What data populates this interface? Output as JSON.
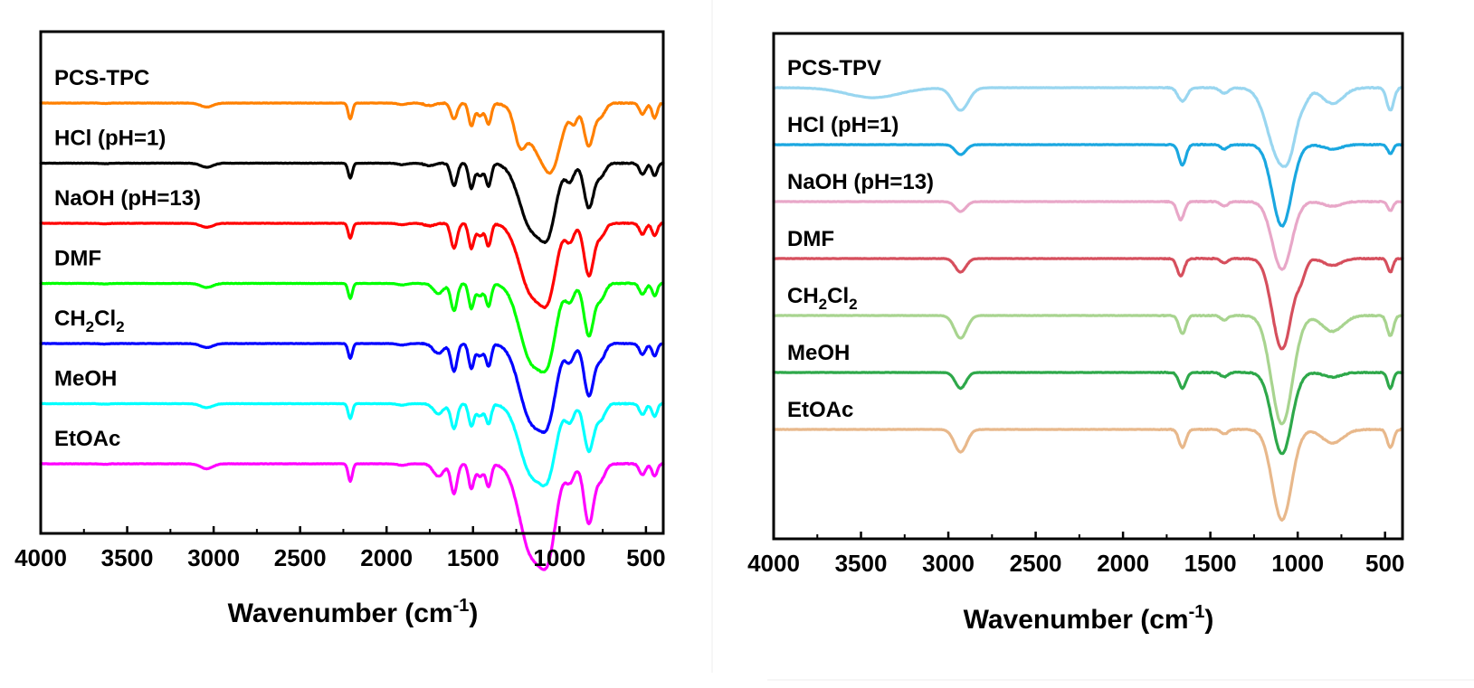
{
  "chart_data": [
    {
      "type": "line",
      "title": "",
      "xlabel": "Wavenumber (cm",
      "xlabel_sup": "-1",
      "xlabel_close": ")",
      "ylabel": "",
      "xlim": [
        4000,
        400
      ],
      "x_ticks": [
        "4000",
        "3500",
        "3000",
        "2500",
        "2000",
        "1500",
        "1000",
        "500"
      ],
      "x_tick_values": [
        4000,
        3500,
        3000,
        2500,
        2000,
        1500,
        1000,
        500
      ],
      "grid": false,
      "series": [
        {
          "name": "PCS-TPC",
          "color": "#ff8000",
          "baseline": 0,
          "bands": [
            [
              3630,
              25,
              0.01
            ],
            [
              3040,
              35,
              0.08
            ],
            [
              2210,
              12,
              0.32
            ],
            [
              1910,
              25,
              0.03
            ],
            [
              1750,
              30,
              0.05
            ],
            [
              1610,
              18,
              0.32
            ],
            [
              1510,
              15,
              0.45
            ],
            [
              1460,
              20,
              0.25
            ],
            [
              1410,
              15,
              0.42
            ],
            [
              1230,
              30,
              0.55
            ],
            [
              1100,
              90,
              1.0
            ],
            [
              1040,
              45,
              0.55
            ],
            [
              915,
              20,
              0.3
            ],
            [
              830,
              28,
              0.85
            ],
            [
              760,
              25,
              0.25
            ],
            [
              520,
              18,
              0.22
            ],
            [
              450,
              15,
              0.3
            ]
          ]
        },
        {
          "name": "HCl (pH=1)",
          "name_parts": [
            "HCl (pH=1)"
          ],
          "color": "#000000",
          "baseline": 0,
          "bands": [
            [
              3630,
              25,
              0.01
            ],
            [
              3040,
              35,
              0.08
            ],
            [
              2210,
              12,
              0.3
            ],
            [
              1910,
              25,
              0.03
            ],
            [
              1750,
              30,
              0.05
            ],
            [
              1610,
              18,
              0.45
            ],
            [
              1510,
              15,
              0.5
            ],
            [
              1460,
              20,
              0.25
            ],
            [
              1410,
              15,
              0.45
            ],
            [
              1160,
              70,
              1.3
            ],
            [
              1060,
              45,
              1.0
            ],
            [
              940,
              25,
              0.35
            ],
            [
              830,
              28,
              0.9
            ],
            [
              760,
              25,
              0.25
            ],
            [
              520,
              18,
              0.22
            ],
            [
              450,
              15,
              0.25
            ]
          ]
        },
        {
          "name": "NaOH (pH=13)",
          "color": "#ff0000",
          "baseline": 0,
          "bands": [
            [
              3630,
              25,
              0.01
            ],
            [
              3040,
              35,
              0.08
            ],
            [
              2210,
              12,
              0.3
            ],
            [
              1910,
              25,
              0.03
            ],
            [
              1750,
              30,
              0.05
            ],
            [
              1610,
              18,
              0.5
            ],
            [
              1510,
              15,
              0.5
            ],
            [
              1460,
              20,
              0.25
            ],
            [
              1410,
              15,
              0.45
            ],
            [
              1160,
              70,
              1.4
            ],
            [
              1060,
              45,
              1.05
            ],
            [
              940,
              25,
              0.35
            ],
            [
              830,
              28,
              1.05
            ],
            [
              760,
              25,
              0.25
            ],
            [
              520,
              18,
              0.22
            ],
            [
              450,
              15,
              0.25
            ]
          ]
        },
        {
          "name": "DMF",
          "color": "#00ff00",
          "baseline": 0,
          "bands": [
            [
              3630,
              25,
              0.01
            ],
            [
              3040,
              35,
              0.08
            ],
            [
              2210,
              12,
              0.3
            ],
            [
              1910,
              25,
              0.03
            ],
            [
              1700,
              30,
              0.2
            ],
            [
              1610,
              18,
              0.55
            ],
            [
              1510,
              15,
              0.5
            ],
            [
              1460,
              20,
              0.25
            ],
            [
              1410,
              15,
              0.45
            ],
            [
              1160,
              70,
              1.55
            ],
            [
              1060,
              45,
              1.05
            ],
            [
              940,
              25,
              0.35
            ],
            [
              830,
              28,
              1.05
            ],
            [
              760,
              25,
              0.3
            ],
            [
              520,
              18,
              0.22
            ],
            [
              450,
              15,
              0.25
            ]
          ]
        },
        {
          "name": "CH2Cl2",
          "name_parts": [
            "CH",
            "2",
            "Cl",
            "2"
          ],
          "color": "#0000ff",
          "baseline": 0,
          "bands": [
            [
              3630,
              25,
              0.01
            ],
            [
              3040,
              35,
              0.08
            ],
            [
              2210,
              12,
              0.3
            ],
            [
              1910,
              25,
              0.03
            ],
            [
              1700,
              30,
              0.2
            ],
            [
              1610,
              18,
              0.55
            ],
            [
              1510,
              15,
              0.5
            ],
            [
              1460,
              20,
              0.25
            ],
            [
              1410,
              15,
              0.45
            ],
            [
              1160,
              70,
              1.55
            ],
            [
              1060,
              45,
              1.05
            ],
            [
              940,
              25,
              0.35
            ],
            [
              830,
              28,
              1.05
            ],
            [
              760,
              25,
              0.3
            ],
            [
              520,
              18,
              0.22
            ],
            [
              450,
              15,
              0.25
            ]
          ]
        },
        {
          "name": "MeOH",
          "color": "#00ffff",
          "baseline": 0,
          "bands": [
            [
              3630,
              25,
              0.01
            ],
            [
              3040,
              35,
              0.08
            ],
            [
              2210,
              12,
              0.3
            ],
            [
              1910,
              25,
              0.03
            ],
            [
              1700,
              30,
              0.2
            ],
            [
              1610,
              18,
              0.5
            ],
            [
              1510,
              15,
              0.45
            ],
            [
              1460,
              20,
              0.25
            ],
            [
              1410,
              15,
              0.4
            ],
            [
              1160,
              70,
              1.4
            ],
            [
              1060,
              45,
              1.0
            ],
            [
              940,
              25,
              0.35
            ],
            [
              830,
              28,
              0.95
            ],
            [
              760,
              25,
              0.3
            ],
            [
              520,
              18,
              0.22
            ],
            [
              450,
              15,
              0.25
            ]
          ]
        },
        {
          "name": "EtOAc",
          "color": "#ff00ff",
          "baseline": 0,
          "bands": [
            [
              3630,
              25,
              0.01
            ],
            [
              3040,
              35,
              0.1
            ],
            [
              2210,
              12,
              0.35
            ],
            [
              1910,
              25,
              0.03
            ],
            [
              1700,
              30,
              0.25
            ],
            [
              1610,
              18,
              0.6
            ],
            [
              1510,
              15,
              0.5
            ],
            [
              1460,
              20,
              0.25
            ],
            [
              1410,
              15,
              0.45
            ],
            [
              1160,
              70,
              1.8
            ],
            [
              1060,
              45,
              1.3
            ],
            [
              940,
              25,
              0.35
            ],
            [
              830,
              28,
              1.2
            ],
            [
              760,
              25,
              0.3
            ],
            [
              520,
              18,
              0.22
            ],
            [
              450,
              15,
              0.25
            ]
          ]
        }
      ]
    },
    {
      "type": "line",
      "title": "",
      "xlabel": "Wavenumber (cm",
      "xlabel_sup": "-1",
      "xlabel_close": ")",
      "ylabel": "",
      "xlim": [
        4000,
        400
      ],
      "x_ticks": [
        "4000",
        "3500",
        "3000",
        "2500",
        "2000",
        "1500",
        "1000",
        "500"
      ],
      "x_tick_values": [
        4000,
        3500,
        3000,
        2500,
        2000,
        1500,
        1000,
        500
      ],
      "grid": false,
      "series": [
        {
          "name": "PCS-TPV",
          "color": "#99d6f0",
          "baseline": 0,
          "bands": [
            [
              3430,
              150,
              0.22
            ],
            [
              2930,
              45,
              0.5
            ],
            [
              1660,
              25,
              0.3
            ],
            [
              1420,
              25,
              0.12
            ],
            [
              1100,
              70,
              1.6
            ],
            [
              1040,
              35,
              0.4
            ],
            [
              960,
              25,
              0.15
            ],
            [
              800,
              60,
              0.35
            ],
            [
              470,
              20,
              0.5
            ]
          ]
        },
        {
          "name": "HCl (pH=1)",
          "color": "#1aa7e0",
          "baseline": 0,
          "bands": [
            [
              2930,
              30,
              0.22
            ],
            [
              1660,
              20,
              0.45
            ],
            [
              1420,
              20,
              0.1
            ],
            [
              1090,
              55,
              1.8
            ],
            [
              800,
              50,
              0.1
            ],
            [
              470,
              15,
              0.2
            ]
          ]
        },
        {
          "name": "NaOH (pH=13)",
          "color": "#e8a7c8",
          "baseline": 0,
          "bands": [
            [
              2930,
              30,
              0.22
            ],
            [
              1670,
              20,
              0.4
            ],
            [
              1420,
              20,
              0.1
            ],
            [
              1090,
              55,
              1.5
            ],
            [
              800,
              50,
              0.1
            ],
            [
              470,
              15,
              0.2
            ]
          ]
        },
        {
          "name": "DMF",
          "color": "#d64f5d",
          "baseline": 0,
          "bands": [
            [
              2930,
              30,
              0.3
            ],
            [
              1670,
              20,
              0.38
            ],
            [
              1420,
              20,
              0.1
            ],
            [
              1090,
              55,
              2.0
            ],
            [
              980,
              25,
              0.3
            ],
            [
              800,
              50,
              0.15
            ],
            [
              470,
              15,
              0.3
            ]
          ]
        },
        {
          "name": "CH2Cl2",
          "name_parts": [
            "CH",
            "2",
            "Cl",
            "2"
          ],
          "color": "#a8d48f",
          "baseline": 0,
          "bands": [
            [
              2930,
              35,
              0.5
            ],
            [
              1660,
              20,
              0.4
            ],
            [
              1420,
              20,
              0.1
            ],
            [
              1090,
              60,
              2.4
            ],
            [
              800,
              60,
              0.35
            ],
            [
              470,
              18,
              0.45
            ]
          ]
        },
        {
          "name": "MeOH",
          "color": "#2ea84a",
          "baseline": 0,
          "bands": [
            [
              2930,
              30,
              0.35
            ],
            [
              1660,
              20,
              0.35
            ],
            [
              1420,
              20,
              0.1
            ],
            [
              1090,
              55,
              1.8
            ],
            [
              800,
              50,
              0.1
            ],
            [
              470,
              15,
              0.35
            ]
          ]
        },
        {
          "name": "EtOAc",
          "color": "#e8b88b",
          "baseline": 0,
          "bands": [
            [
              2930,
              35,
              0.5
            ],
            [
              1660,
              20,
              0.4
            ],
            [
              1420,
              20,
              0.1
            ],
            [
              1090,
              55,
              2.0
            ],
            [
              800,
              60,
              0.3
            ],
            [
              470,
              18,
              0.4
            ]
          ]
        }
      ]
    }
  ]
}
